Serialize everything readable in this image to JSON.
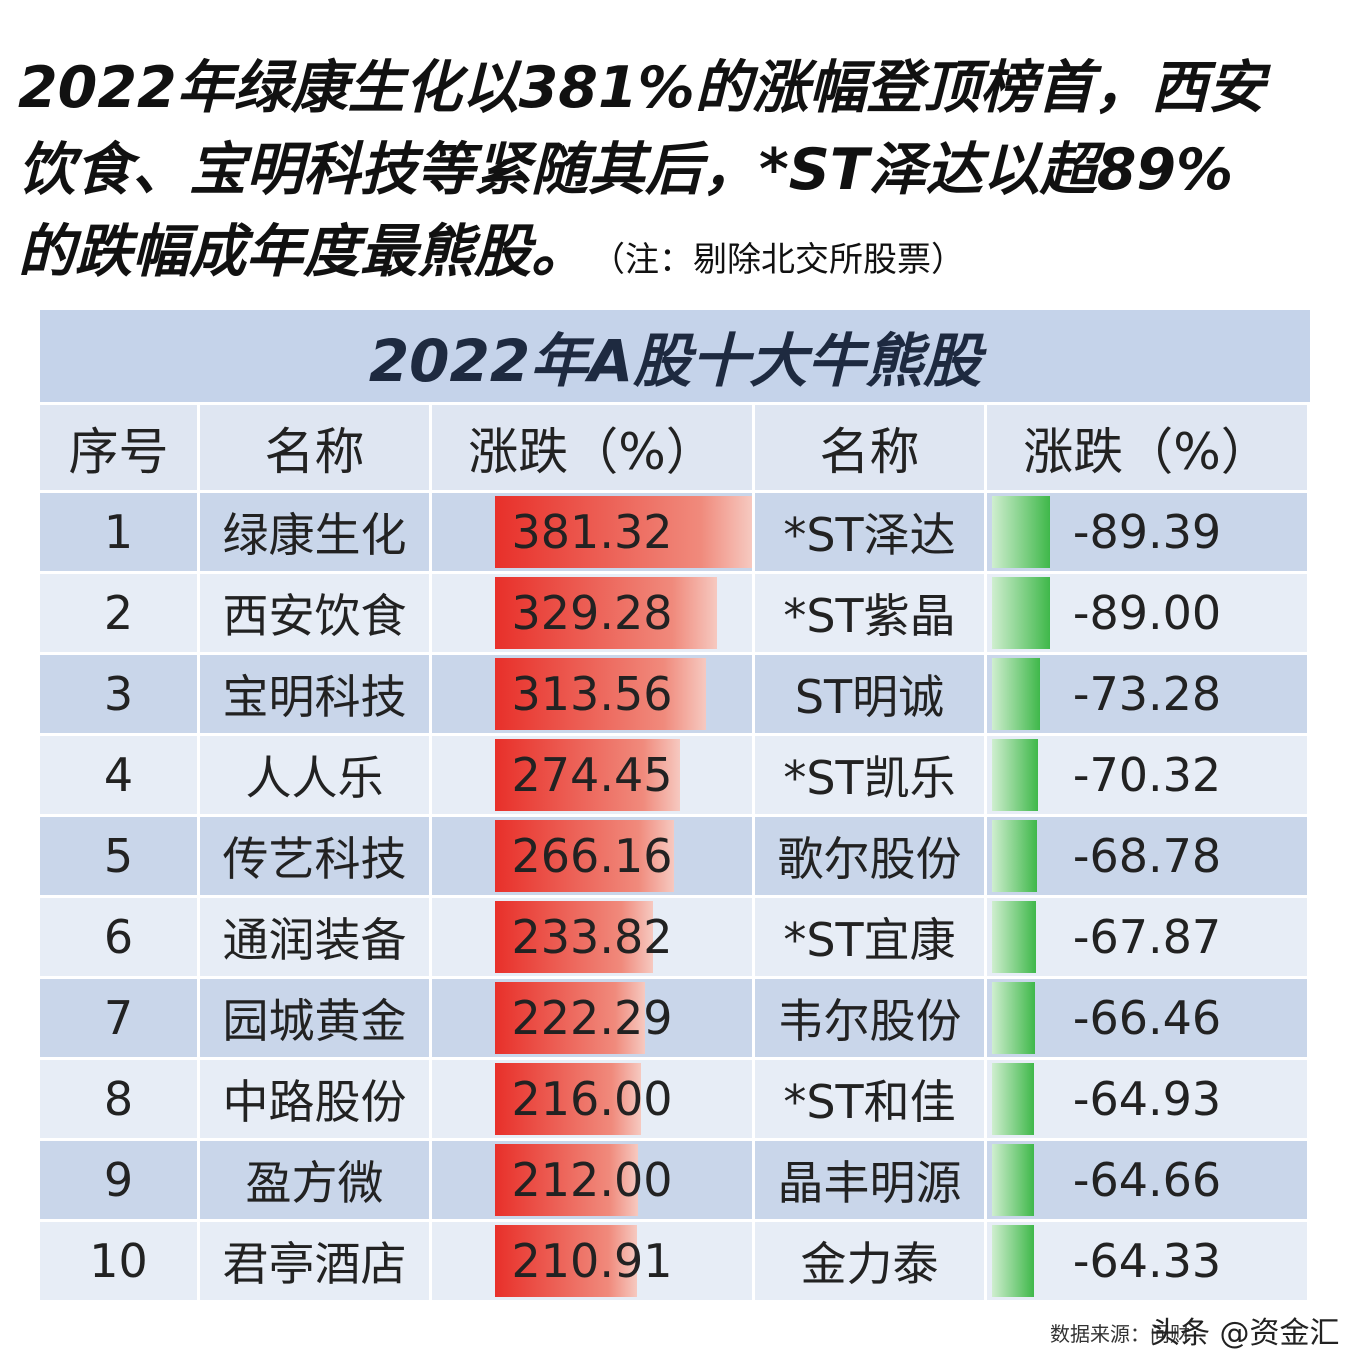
{
  "intro": {
    "lines": [
      "2022年绿康生化以381%的涨幅登顶榜首，西安",
      "饮食、宝明科技等紧随其后，*ST泽达以超89%",
      "的跌幅成年度最熊股。"
    ],
    "note": "（注：剔除北交所股票）"
  },
  "table": {
    "title": "2022年A股十大牛熊股",
    "headers": [
      "序号",
      "名称",
      "涨跌（%）",
      "名称",
      "涨跌（%）"
    ],
    "ranks": [
      1,
      2,
      3,
      4,
      5,
      6,
      7,
      8,
      9,
      10
    ],
    "gainers": {
      "names": [
        "绿康生化",
        "西安饮食",
        "宝明科技",
        "人人乐",
        "传艺科技",
        "通润装备",
        "园城黄金",
        "中路股份",
        "盈方微",
        "君亭酒店"
      ],
      "values": [
        381.32,
        329.28,
        313.56,
        274.45,
        266.16,
        233.82,
        222.29,
        216,
        212,
        210.91
      ],
      "value_labels": [
        "381.32",
        "329.28",
        "313.56",
        "274.45",
        "266.16",
        "233.82",
        "222.29",
        "216.00",
        "212.00",
        "210.91"
      ]
    },
    "losers": {
      "names": [
        "*ST泽达",
        "*ST紫晶",
        "ST明诚",
        "*ST凯乐",
        "歌尔股份",
        "*ST宜康",
        "韦尔股份",
        "*ST和佳",
        "晶丰明源",
        "金力泰"
      ],
      "values": [
        -89.39,
        -89,
        -73.28,
        -70.32,
        -68.78,
        -67.87,
        -66.46,
        -64.93,
        -64.66,
        -64.33
      ],
      "value_labels": [
        "-89.39",
        "-89.00",
        "-73.28",
        "-70.32",
        "-68.78",
        "-67.87",
        "-66.46",
        "-64.93",
        "-64.66",
        "-64.33"
      ]
    }
  },
  "footer": {
    "source": "数据来源：问财",
    "watermark": "头条 @资金汇"
  }
}
